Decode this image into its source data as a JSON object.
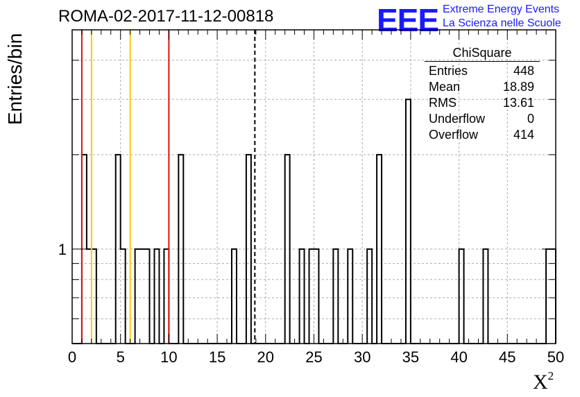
{
  "header": {
    "title": "ROMA-02-2017-11-12-00818",
    "logo": "EEE",
    "logo_line1": "Extreme Energy Events",
    "logo_line2": "La Scienza nelle Scuole"
  },
  "stats_box": {
    "title": "ChiSquare",
    "rows": [
      {
        "label": "Entries",
        "value": "448"
      },
      {
        "label": "Mean",
        "value": "18.89"
      },
      {
        "label": "RMS",
        "value": "13.61"
      },
      {
        "label": "Underflow",
        "value": "0"
      },
      {
        "label": "Overflow",
        "value": "414"
      }
    ]
  },
  "chart_data": {
    "type": "bar",
    "histogram": true,
    "title": "ROMA-02-2017-11-12-00818",
    "xlabel": "X²",
    "ylabel": "Entries/bin",
    "xlim": [
      0,
      50
    ],
    "ylim": [
      0.5,
      5
    ],
    "yscale": "log",
    "bin_width": 0.5,
    "grid": true,
    "x_ticks": [
      "0",
      "5",
      "10",
      "15",
      "20",
      "25",
      "30",
      "35",
      "40",
      "45",
      "50"
    ],
    "y_tick_labels": [
      {
        "value": 1,
        "label": "1"
      }
    ],
    "bins": [
      {
        "x": 1.0,
        "count": 2
      },
      {
        "x": 1.5,
        "count": 1
      },
      {
        "x": 2.0,
        "count": 1
      },
      {
        "x": 4.5,
        "count": 2
      },
      {
        "x": 5.0,
        "count": 1
      },
      {
        "x": 6.5,
        "count": 1
      },
      {
        "x": 7.0,
        "count": 1
      },
      {
        "x": 7.5,
        "count": 1
      },
      {
        "x": 8.5,
        "count": 1
      },
      {
        "x": 9.5,
        "count": 1
      },
      {
        "x": 11.0,
        "count": 2
      },
      {
        "x": 16.5,
        "count": 1
      },
      {
        "x": 18.0,
        "count": 2
      },
      {
        "x": 22.0,
        "count": 2
      },
      {
        "x": 23.5,
        "count": 1
      },
      {
        "x": 24.5,
        "count": 1
      },
      {
        "x": 25.0,
        "count": 1
      },
      {
        "x": 27.0,
        "count": 1
      },
      {
        "x": 28.5,
        "count": 1
      },
      {
        "x": 30.5,
        "count": 1
      },
      {
        "x": 31.5,
        "count": 2
      },
      {
        "x": 34.5,
        "count": 3
      },
      {
        "x": 40.0,
        "count": 1
      },
      {
        "x": 42.5,
        "count": 1
      },
      {
        "x": 49.0,
        "count": 1
      },
      {
        "x": 49.5,
        "count": 1
      }
    ],
    "vertical_lines": [
      {
        "x": 1.0,
        "color": "#dd1111",
        "style": "solid"
      },
      {
        "x": 2.0,
        "color": "#ffcc00",
        "style": "solid"
      },
      {
        "x": 6.0,
        "color": "#ffcc00",
        "style": "solid"
      },
      {
        "x": 10.0,
        "color": "#dd1111",
        "style": "solid"
      },
      {
        "x": 18.89,
        "color": "#000000",
        "style": "dashed"
      }
    ]
  }
}
